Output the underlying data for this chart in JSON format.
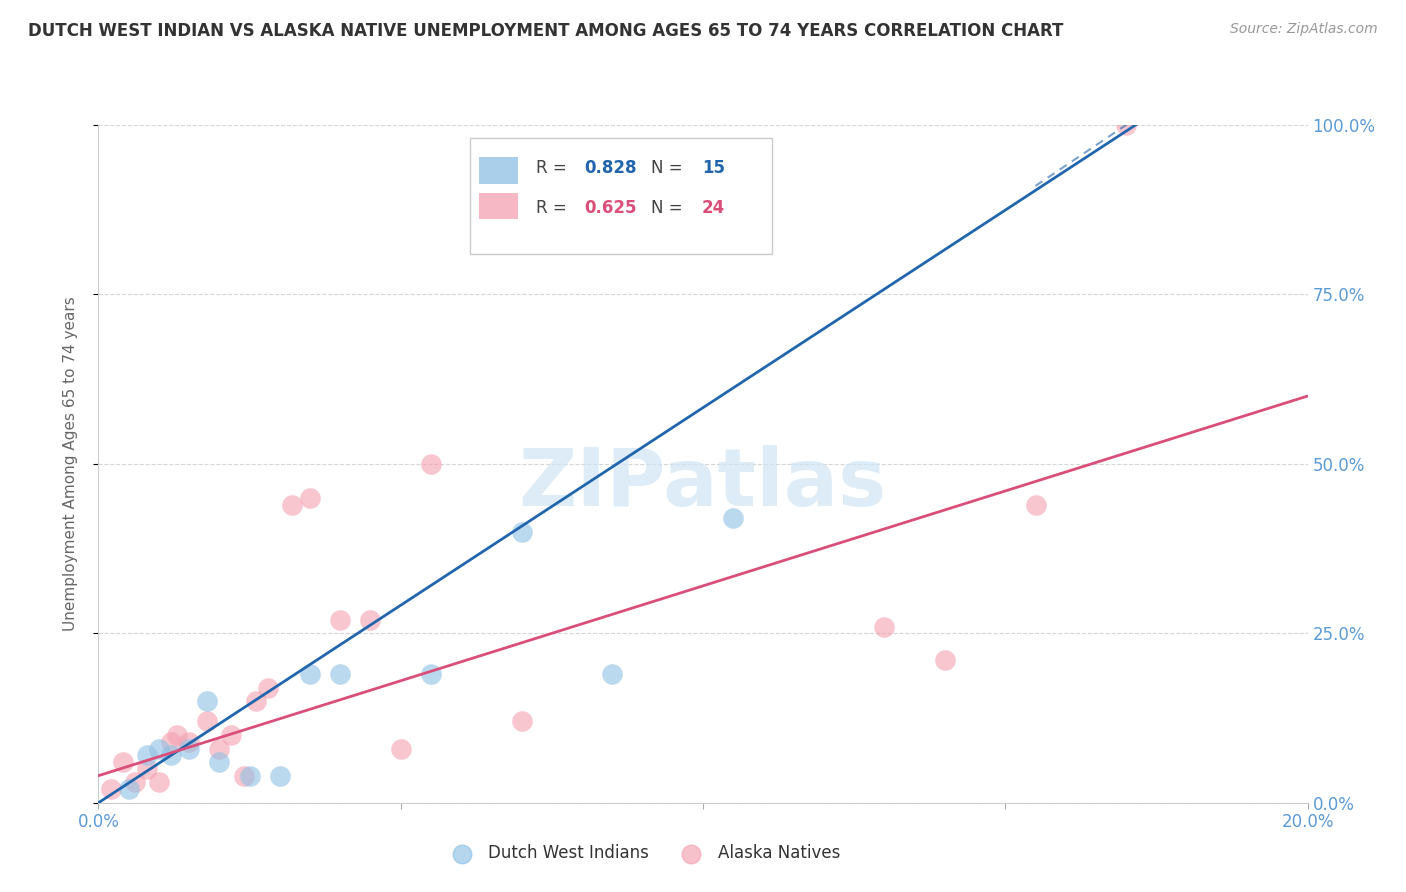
{
  "title": "DUTCH WEST INDIAN VS ALASKA NATIVE UNEMPLOYMENT AMONG AGES 65 TO 74 YEARS CORRELATION CHART",
  "source": "Source: ZipAtlas.com",
  "ylabel": "Unemployment Among Ages 65 to 74 years",
  "watermark": "ZIPatlas",
  "xlim": [
    0.0,
    0.2
  ],
  "ylim": [
    0.0,
    1.0
  ],
  "blue_R": 0.828,
  "blue_N": 15,
  "pink_R": 0.625,
  "pink_N": 24,
  "legend_label_blue": "Dutch West Indians",
  "legend_label_pink": "Alaska Natives",
  "blue_color": "#8ec0e4",
  "pink_color": "#f4a0b0",
  "blue_line_color": "#2166ac",
  "pink_line_color": "#d94f7a",
  "title_color": "#333333",
  "axis_label_color": "#5b9bd5",
  "grid_color": "#cccccc",
  "blue_scatter": [
    [
      0.005,
      0.02
    ],
    [
      0.008,
      0.07
    ],
    [
      0.01,
      0.08
    ],
    [
      0.012,
      0.07
    ],
    [
      0.015,
      0.08
    ],
    [
      0.018,
      0.15
    ],
    [
      0.02,
      0.06
    ],
    [
      0.025,
      0.04
    ],
    [
      0.03,
      0.04
    ],
    [
      0.035,
      0.19
    ],
    [
      0.04,
      0.19
    ],
    [
      0.055,
      0.19
    ],
    [
      0.07,
      0.4
    ],
    [
      0.085,
      0.19
    ],
    [
      0.105,
      0.42
    ]
  ],
  "pink_scatter": [
    [
      0.002,
      0.02
    ],
    [
      0.004,
      0.06
    ],
    [
      0.006,
      0.03
    ],
    [
      0.008,
      0.05
    ],
    [
      0.01,
      0.03
    ],
    [
      0.012,
      0.09
    ],
    [
      0.013,
      0.1
    ],
    [
      0.015,
      0.09
    ],
    [
      0.018,
      0.12
    ],
    [
      0.02,
      0.08
    ],
    [
      0.022,
      0.1
    ],
    [
      0.024,
      0.04
    ],
    [
      0.026,
      0.15
    ],
    [
      0.028,
      0.17
    ],
    [
      0.032,
      0.44
    ],
    [
      0.035,
      0.45
    ],
    [
      0.04,
      0.27
    ],
    [
      0.045,
      0.27
    ],
    [
      0.05,
      0.08
    ],
    [
      0.055,
      0.5
    ],
    [
      0.07,
      0.12
    ],
    [
      0.13,
      0.26
    ],
    [
      0.14,
      0.21
    ],
    [
      0.155,
      0.44
    ]
  ],
  "blue_dot_outlier": [
    0.17,
    1.0
  ],
  "blue_line_x": [
    0.0,
    0.175
  ],
  "blue_line_y": [
    0.0,
    1.02
  ],
  "pink_line_x": [
    0.0,
    0.2
  ],
  "pink_line_y": [
    0.04,
    0.6
  ]
}
